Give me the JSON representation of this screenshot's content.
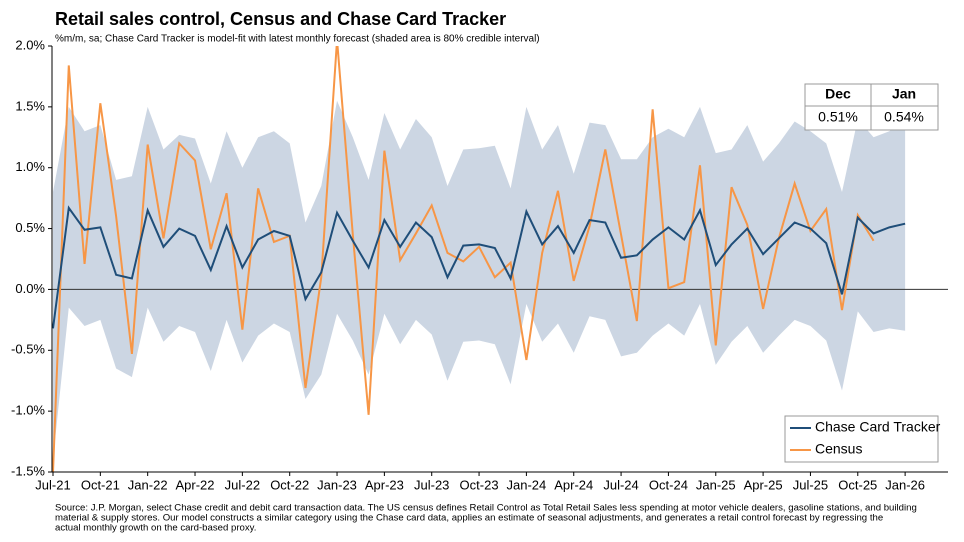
{
  "chart_data": {
    "type": "line",
    "title": "Retail sales control, Census and Chase Card Tracker",
    "subtitle": "%m/m, sa; Chase Card Tracker is model-fit with latest monthly forecast (shaded area is 80% credible interval)",
    "categories": [
      "Jul-21",
      null,
      null,
      "Oct-21",
      null,
      null,
      "Jan-22",
      null,
      null,
      "Apr-22",
      null,
      null,
      "Jul-22",
      null,
      null,
      "Oct-22",
      null,
      null,
      "Jan-23",
      null,
      null,
      "Apr-23",
      null,
      null,
      "Jul-23",
      null,
      null,
      "Oct-23",
      null,
      null,
      "Jan-24",
      null,
      null,
      "Apr-24",
      null,
      null,
      "Jul-24",
      null,
      null,
      "Oct-24",
      null,
      null,
      "Jan-25",
      null,
      null,
      "Apr-25",
      null,
      null,
      "Jul-25",
      null,
      null,
      "Oct-25",
      null,
      null,
      "Jan-26"
    ],
    "series": [
      {
        "name": "Chase Card Tracker",
        "color": "#1f4e79",
        "values": [
          -0.32,
          0.67,
          0.49,
          0.51,
          0.12,
          0.09,
          0.65,
          0.35,
          0.5,
          0.44,
          0.16,
          0.52,
          0.18,
          0.41,
          0.48,
          0.44,
          -0.08,
          0.14,
          0.63,
          0.4,
          0.18,
          0.57,
          0.35,
          0.55,
          0.43,
          0.1,
          0.36,
          0.37,
          0.34,
          0.09,
          0.64,
          0.37,
          0.52,
          0.3,
          0.57,
          0.55,
          0.26,
          0.28,
          0.41,
          0.51,
          0.41,
          0.65,
          0.2,
          0.37,
          0.5,
          0.29,
          0.42,
          0.55,
          0.5,
          0.38,
          -0.04,
          0.59,
          0.46,
          0.51,
          0.54
        ]
      },
      {
        "name": "Census",
        "color": "#f79646",
        "values": [
          -1.5,
          1.84,
          0.21,
          1.53,
          0.6,
          -0.53,
          1.19,
          0.42,
          1.2,
          1.06,
          0.33,
          0.79,
          -0.33,
          0.83,
          0.39,
          0.44,
          -0.81,
          0.1,
          2.05,
          0.45,
          -1.03,
          1.14,
          0.24,
          0.46,
          0.69,
          0.3,
          0.23,
          0.35,
          0.1,
          0.22,
          -0.58,
          0.3,
          0.81,
          0.07,
          0.52,
          1.15,
          0.45,
          -0.26,
          1.48,
          0.01,
          0.06,
          1.02,
          -0.46,
          0.84,
          0.53,
          -0.16,
          0.42,
          0.87,
          0.48,
          0.66,
          -0.17,
          0.61,
          0.4,
          null,
          null
        ]
      }
    ],
    "band": {
      "color": "#ccd6e3",
      "upper": [
        0.8,
        1.5,
        1.3,
        1.35,
        0.9,
        0.93,
        1.5,
        1.15,
        1.27,
        1.24,
        0.87,
        1.3,
        1.0,
        1.25,
        1.3,
        1.2,
        0.55,
        0.85,
        1.55,
        1.25,
        0.9,
        1.45,
        1.15,
        1.4,
        1.25,
        0.85,
        1.15,
        1.16,
        1.18,
        0.83,
        1.5,
        1.15,
        1.35,
        0.95,
        1.37,
        1.35,
        1.07,
        1.07,
        1.25,
        1.32,
        1.25,
        1.5,
        1.12,
        1.15,
        1.35,
        1.05,
        1.2,
        1.38,
        1.3,
        1.2,
        0.8,
        1.4,
        1.25,
        1.3,
        1.4
      ],
      "lower": [
        -1.4,
        -0.15,
        -0.3,
        -0.25,
        -0.65,
        -0.72,
        -0.15,
        -0.43,
        -0.3,
        -0.35,
        -0.67,
        -0.25,
        -0.6,
        -0.38,
        -0.28,
        -0.35,
        -0.9,
        -0.7,
        -0.2,
        -0.42,
        -0.7,
        -0.2,
        -0.45,
        -0.25,
        -0.37,
        -0.75,
        -0.43,
        -0.42,
        -0.45,
        -0.78,
        -0.12,
        -0.43,
        -0.28,
        -0.52,
        -0.22,
        -0.25,
        -0.55,
        -0.52,
        -0.38,
        -0.28,
        -0.38,
        -0.12,
        -0.62,
        -0.43,
        -0.3,
        -0.52,
        -0.38,
        -0.25,
        -0.3,
        -0.42,
        -0.83,
        -0.18,
        -0.35,
        -0.32,
        -0.34
      ]
    },
    "ylim": [
      -1.5,
      2.0
    ],
    "yticks": [
      {
        "value": -1.5,
        "label": "-1.5%"
      },
      {
        "value": -1.0,
        "label": "-1.0%"
      },
      {
        "value": -0.5,
        "label": "-0.5%"
      },
      {
        "value": 0.0,
        "label": "0.0%"
      },
      {
        "value": 0.5,
        "label": "0.5%"
      },
      {
        "value": 1.0,
        "label": "1.0%"
      },
      {
        "value": 1.5,
        "label": "1.5%"
      },
      {
        "value": 2.0,
        "label": "2.0%"
      }
    ],
    "legend": "lower right",
    "table": {
      "headers": [
        "Dec",
        "Jan"
      ],
      "cells": [
        "0.51%",
        "0.54%"
      ]
    },
    "source": [
      "Source: J.P. Morgan, select Chase credit and debit card transaction data. The US census defines Retail Control as Total Retail Sales less spending at motor vehicle dealers, gasoline stations, and building",
      "material & supply stores. Our model constructs a similar category using the Chase card data, applies an estimate of seasonal adjustments, and generates a retail control forecast by regressing the",
      "actual monthly growth on the card-based proxy."
    ]
  }
}
